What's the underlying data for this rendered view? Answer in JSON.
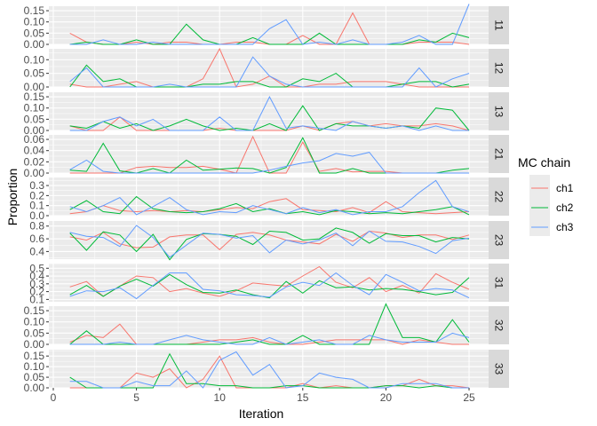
{
  "chart_data": {
    "type": "line",
    "title": "",
    "xlabel": "Iteration",
    "ylabel": "Proportion",
    "x": [
      1,
      2,
      3,
      4,
      5,
      6,
      7,
      8,
      9,
      10,
      11,
      12,
      13,
      14,
      15,
      16,
      17,
      18,
      19,
      20,
      21,
      22,
      23,
      24,
      25
    ],
    "x_ticks": [
      "0",
      "5",
      "10",
      "15",
      "20",
      "25"
    ],
    "xlim": [
      0,
      26
    ],
    "grid": true,
    "legend": {
      "title": "MC chain",
      "position": "right",
      "entries": [
        "ch1",
        "ch2",
        "ch3"
      ]
    },
    "colors": {
      "ch1": "#F8766D",
      "ch2": "#00BA38",
      "ch3": "#619CFF"
    },
    "facets": [
      {
        "label": "11",
        "ylim": [
          0,
          0.17
        ],
        "y_ticks": [
          "0.00",
          "0.05",
          "0.10",
          "0.15"
        ],
        "series": [
          {
            "name": "ch1",
            "values": [
              0.05,
              0.01,
              0.0,
              0.0,
              0.01,
              0.0,
              0.01,
              0.01,
              0.0,
              0.0,
              0.01,
              0.01,
              0.0,
              0.0,
              0.04,
              0.0,
              0.0,
              0.14,
              0.0,
              0.0,
              0.0,
              0.01,
              0.01,
              0.01,
              0.0
            ]
          },
          {
            "name": "ch2",
            "values": [
              0.0,
              0.01,
              0.0,
              0.0,
              0.02,
              0.0,
              0.0,
              0.09,
              0.02,
              0.0,
              0.0,
              0.03,
              0.0,
              0.0,
              0.0,
              0.05,
              0.0,
              0.0,
              0.0,
              0.0,
              0.0,
              0.02,
              0.01,
              0.05,
              0.03
            ]
          },
          {
            "name": "ch3",
            "values": [
              0.0,
              0.0,
              0.02,
              0.0,
              0.0,
              0.01,
              0.0,
              0.0,
              0.0,
              0.0,
              0.0,
              0.0,
              0.07,
              0.11,
              0.0,
              0.01,
              0.0,
              0.02,
              0.0,
              0.0,
              0.01,
              0.04,
              0.0,
              0.0,
              0.18
            ]
          }
        ]
      },
      {
        "label": "12",
        "ylim": [
          0,
          0.14
        ],
        "y_ticks": [
          "0.00",
          "0.05",
          "0.10"
        ],
        "series": [
          {
            "name": "ch1",
            "values": [
              0.01,
              0.0,
              0.0,
              0.01,
              0.02,
              0.0,
              0.0,
              0.0,
              0.03,
              0.14,
              0.0,
              0.01,
              0.04,
              0.0,
              0.0,
              0.01,
              0.01,
              0.02,
              0.02,
              0.02,
              0.01,
              0.0,
              0.0,
              0.0,
              0.0
            ]
          },
          {
            "name": "ch2",
            "values": [
              0.0,
              0.08,
              0.02,
              0.03,
              0.0,
              0.0,
              0.0,
              0.0,
              0.01,
              0.01,
              0.02,
              0.02,
              0.0,
              0.0,
              0.03,
              0.02,
              0.05,
              0.0,
              0.0,
              0.0,
              0.01,
              0.02,
              0.02,
              0.0,
              0.01
            ]
          },
          {
            "name": "ch3",
            "values": [
              0.02,
              0.07,
              0.0,
              0.0,
              0.0,
              0.0,
              0.01,
              0.0,
              0.0,
              0.0,
              0.0,
              0.11,
              0.04,
              0.01,
              0.0,
              0.0,
              0.0,
              0.0,
              0.0,
              0.0,
              0.0,
              0.07,
              0.0,
              0.03,
              0.05
            ]
          }
        ]
      },
      {
        "label": "13",
        "ylim": [
          0,
          0.17
        ],
        "y_ticks": [
          "0.00",
          "0.05",
          "0.10",
          "0.15"
        ],
        "series": [
          {
            "name": "ch1",
            "values": [
              0.02,
              0.0,
              0.0,
              0.06,
              0.0,
              0.0,
              0.0,
              0.0,
              0.0,
              0.01,
              0.0,
              0.0,
              0.0,
              0.0,
              0.02,
              0.0,
              0.03,
              0.04,
              0.02,
              0.03,
              0.02,
              0.02,
              0.03,
              0.02,
              0.0
            ]
          },
          {
            "name": "ch2",
            "values": [
              0.02,
              0.01,
              0.04,
              0.01,
              0.03,
              0.0,
              0.02,
              0.05,
              0.02,
              0.0,
              0.01,
              0.0,
              0.03,
              0.0,
              0.11,
              0.0,
              0.03,
              0.02,
              0.02,
              0.01,
              0.02,
              0.01,
              0.1,
              0.09,
              0.0
            ]
          },
          {
            "name": "ch3",
            "values": [
              0.0,
              0.0,
              0.04,
              0.06,
              0.02,
              0.05,
              0.0,
              0.0,
              0.0,
              0.06,
              0.0,
              0.0,
              0.15,
              0.01,
              0.02,
              0.01,
              0.0,
              0.04,
              0.02,
              0.01,
              0.02,
              0.0,
              0.02,
              0.0,
              0.0
            ]
          }
        ]
      },
      {
        "label": "21",
        "ylim": [
          0,
          0.068
        ],
        "y_ticks": [
          "0.00",
          "0.02",
          "0.04",
          "0.06"
        ],
        "series": [
          {
            "name": "ch1",
            "values": [
              0.0,
              0.0,
              0.0,
              0.0,
              0.01,
              0.012,
              0.01,
              0.01,
              0.012,
              0.007,
              0.0,
              0.065,
              0.0,
              0.0,
              0.055,
              0.003,
              0.008,
              0.002,
              0.003,
              0.003,
              0.0,
              0.0,
              0.0,
              0.0,
              0.0
            ]
          },
          {
            "name": "ch2",
            "values": [
              0.005,
              0.003,
              0.053,
              0.004,
              0.0,
              0.008,
              0.0,
              0.023,
              0.005,
              0.007,
              0.009,
              0.008,
              0.0,
              0.01,
              0.063,
              0.0,
              0.0,
              0.008,
              0.0,
              0.0,
              0.0,
              0.0,
              0.0,
              0.005,
              0.008
            ]
          },
          {
            "name": "ch3",
            "values": [
              0.006,
              0.023,
              0.003,
              0.0,
              0.0,
              0.0,
              0.0,
              0.0,
              0.0,
              0.0,
              0.0,
              0.0,
              0.005,
              0.012,
              0.018,
              0.022,
              0.035,
              0.03,
              0.037,
              0.0,
              0.0,
              0.0,
              0.0,
              0.0,
              0.0
            ]
          }
        ]
      },
      {
        "label": "22",
        "ylim": [
          0,
          0.38
        ],
        "y_ticks": [
          "0.0",
          "0.1",
          "0.2",
          "0.3"
        ],
        "series": [
          {
            "name": "ch1",
            "values": [
              0.02,
              0.04,
              0.1,
              0.05,
              0.04,
              0.05,
              0.04,
              0.05,
              0.04,
              0.06,
              0.08,
              0.07,
              0.14,
              0.17,
              0.06,
              0.05,
              0.04,
              0.08,
              0.03,
              0.14,
              0.04,
              0.03,
              0.02,
              0.03,
              0.04
            ]
          },
          {
            "name": "ch2",
            "values": [
              0.06,
              0.15,
              0.04,
              0.02,
              0.19,
              0.07,
              0.04,
              0.03,
              0.04,
              0.07,
              0.12,
              0.04,
              0.07,
              0.02,
              0.04,
              0.01,
              0.05,
              0.04,
              0.02,
              0.03,
              0.02,
              0.04,
              0.06,
              0.09,
              0.01
            ]
          },
          {
            "name": "ch3",
            "values": [
              0.09,
              0.04,
              0.1,
              0.18,
              0.01,
              0.09,
              0.18,
              0.06,
              0.01,
              0.04,
              0.03,
              0.1,
              0.06,
              0.02,
              0.08,
              0.03,
              0.06,
              0.01,
              0.04,
              0.04,
              0.09,
              0.23,
              0.35,
              0.09,
              0.04
            ]
          }
        ]
      },
      {
        "label": "23",
        "ylim": [
          0.28,
          0.88
        ],
        "y_ticks": [
          "0.4",
          "0.6",
          "0.8"
        ],
        "series": [
          {
            "name": "ch1",
            "values": [
              0.63,
              0.58,
              0.7,
              0.52,
              0.46,
              0.47,
              0.63,
              0.66,
              0.66,
              0.43,
              0.67,
              0.7,
              0.66,
              0.58,
              0.55,
              0.52,
              0.67,
              0.56,
              0.72,
              0.69,
              0.62,
              0.66,
              0.66,
              0.59,
              0.66
            ]
          },
          {
            "name": "ch2",
            "values": [
              0.69,
              0.42,
              0.71,
              0.66,
              0.4,
              0.67,
              0.27,
              0.59,
              0.68,
              0.67,
              0.64,
              0.51,
              0.72,
              0.7,
              0.58,
              0.6,
              0.77,
              0.7,
              0.53,
              0.68,
              0.65,
              0.65,
              0.55,
              0.62,
              0.6
            ]
          },
          {
            "name": "ch3",
            "values": [
              0.7,
              0.64,
              0.62,
              0.48,
              0.81,
              0.62,
              0.31,
              0.5,
              0.69,
              0.67,
              0.61,
              0.65,
              0.38,
              0.58,
              0.52,
              0.58,
              0.69,
              0.49,
              0.72,
              0.56,
              0.55,
              0.48,
              0.37,
              0.57,
              0.61
            ]
          }
        ]
      },
      {
        "label": "31",
        "ylim": [
          0.07,
          0.56
        ],
        "y_ticks": [
          "0.1",
          "0.2",
          "0.3",
          "0.4",
          "0.5"
        ],
        "series": [
          {
            "name": "ch1",
            "values": [
              0.26,
              0.33,
              0.14,
              0.27,
              0.4,
              0.38,
              0.2,
              0.24,
              0.18,
              0.14,
              0.21,
              0.31,
              0.29,
              0.27,
              0.4,
              0.52,
              0.32,
              0.25,
              0.38,
              0.2,
              0.28,
              0.18,
              0.43,
              0.32,
              0.23
            ]
          },
          {
            "name": "ch2",
            "values": [
              0.16,
              0.28,
              0.14,
              0.27,
              0.36,
              0.27,
              0.42,
              0.29,
              0.19,
              0.18,
              0.22,
              0.16,
              0.12,
              0.33,
              0.18,
              0.34,
              0.25,
              0.26,
              0.22,
              0.24,
              0.23,
              0.2,
              0.16,
              0.19,
              0.38
            ]
          },
          {
            "name": "ch3",
            "values": [
              0.14,
              0.21,
              0.2,
              0.25,
              0.11,
              0.28,
              0.44,
              0.44,
              0.23,
              0.21,
              0.16,
              0.15,
              0.13,
              0.26,
              0.32,
              0.28,
              0.44,
              0.28,
              0.16,
              0.42,
              0.32,
              0.21,
              0.24,
              0.22,
              0.12
            ]
          }
        ]
      },
      {
        "label": "32",
        "ylim": [
          0,
          0.17
        ],
        "y_ticks": [
          "0.00",
          "0.05",
          "0.10",
          "0.15"
        ],
        "series": [
          {
            "name": "ch1",
            "values": [
              0.01,
              0.04,
              0.03,
              0.09,
              0.0,
              0.0,
              0.0,
              0.0,
              0.01,
              0.02,
              0.02,
              0.03,
              0.01,
              0.0,
              0.0,
              0.01,
              0.02,
              0.02,
              0.02,
              0.02,
              0.0,
              0.02,
              0.01,
              0.0,
              0.0
            ]
          },
          {
            "name": "ch2",
            "values": [
              0.0,
              0.06,
              0.0,
              0.0,
              0.0,
              0.0,
              0.0,
              0.0,
              0.0,
              0.0,
              0.01,
              0.02,
              0.0,
              0.0,
              0.04,
              0.0,
              0.0,
              0.0,
              0.0,
              0.18,
              0.03,
              0.03,
              0.01,
              0.11,
              0.01
            ]
          },
          {
            "name": "ch3",
            "values": [
              0.0,
              0.0,
              0.0,
              0.01,
              0.0,
              0.0,
              0.02,
              0.04,
              0.02,
              0.01,
              0.0,
              0.0,
              0.03,
              0.0,
              0.01,
              0.02,
              0.0,
              0.0,
              0.04,
              0.02,
              0.01,
              0.01,
              0.01,
              0.05,
              0.03
            ]
          }
        ]
      },
      {
        "label": "33",
        "ylim": [
          0,
          0.18
        ],
        "y_ticks": [
          "0.00",
          "0.05",
          "0.10",
          "0.15"
        ],
        "series": [
          {
            "name": "ch1",
            "values": [
              0.0,
              0.0,
              0.0,
              0.0,
              0.07,
              0.05,
              0.09,
              0.0,
              0.04,
              0.15,
              0.0,
              0.0,
              0.0,
              0.0,
              0.02,
              0.0,
              0.01,
              0.0,
              0.0,
              0.01,
              0.01,
              0.04,
              0.01,
              0.01,
              0.0
            ]
          },
          {
            "name": "ch2",
            "values": [
              0.05,
              0.0,
              0.0,
              0.0,
              0.0,
              0.0,
              0.16,
              0.02,
              0.02,
              0.01,
              0.01,
              0.0,
              0.0,
              0.01,
              0.01,
              0.0,
              0.0,
              0.0,
              0.0,
              0.01,
              0.01,
              0.0,
              0.01,
              0.0,
              0.0
            ]
          },
          {
            "name": "ch3",
            "values": [
              0.03,
              0.03,
              0.0,
              0.0,
              0.03,
              0.01,
              0.01,
              0.08,
              0.0,
              0.13,
              0.17,
              0.06,
              0.11,
              0.0,
              0.01,
              0.07,
              0.05,
              0.04,
              0.0,
              0.0,
              0.02,
              0.02,
              0.02,
              0.0,
              0.0
            ]
          }
        ]
      }
    ]
  }
}
